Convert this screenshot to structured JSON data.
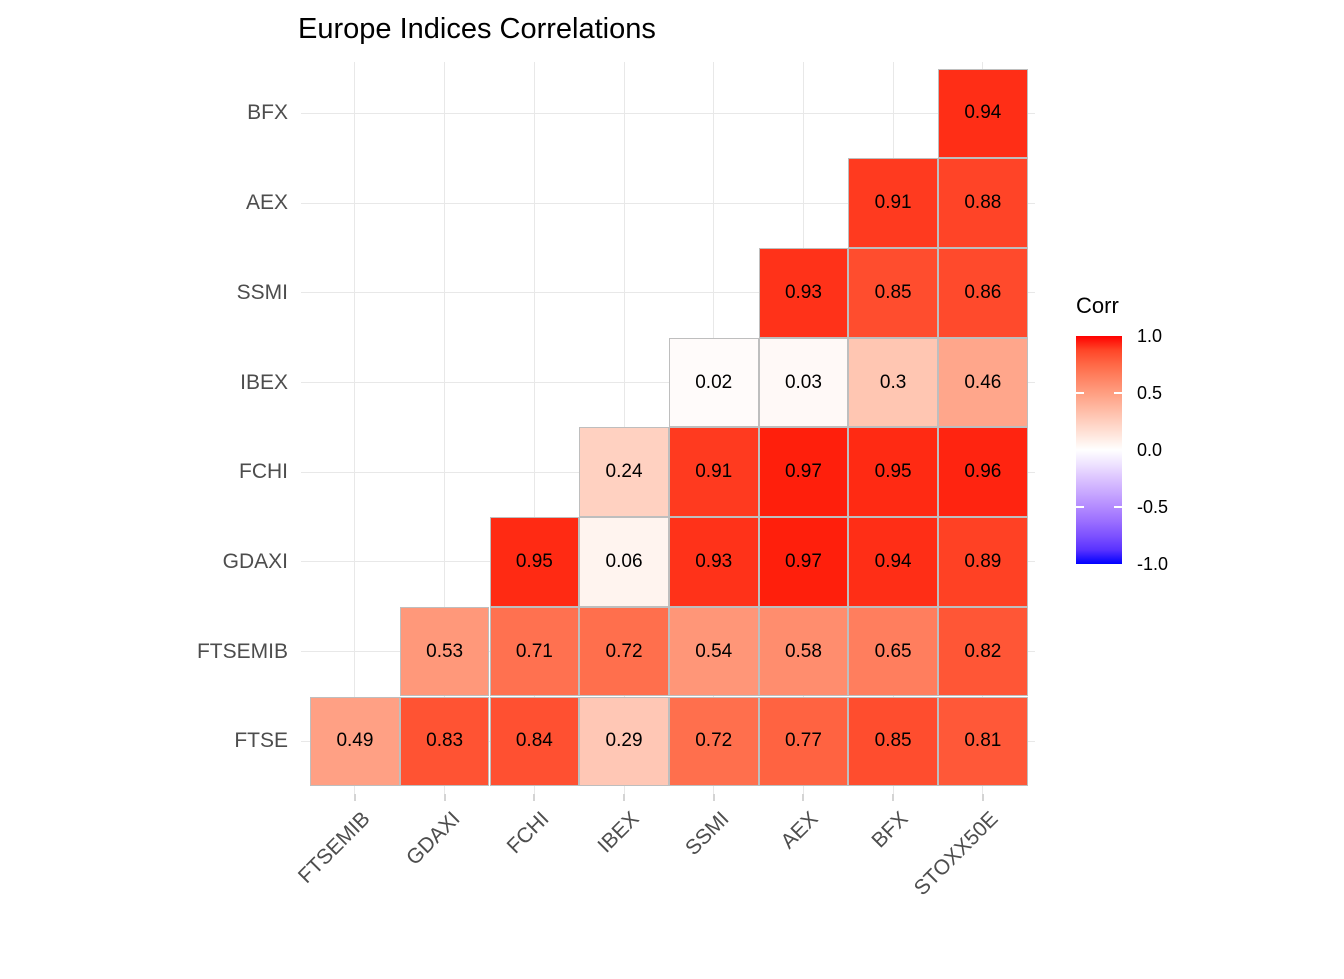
{
  "title": "Europe Indices Correlations",
  "legend": {
    "title": "Corr",
    "ticks": [
      {
        "label": "1.0",
        "value": 1.0
      },
      {
        "label": "0.5",
        "value": 0.5
      },
      {
        "label": "0.0",
        "value": 0.0
      },
      {
        "label": "-0.5",
        "value": -0.5
      },
      {
        "label": "-1.0",
        "value": -1.0
      }
    ]
  },
  "colors": {
    "high": "#FF0000",
    "mid": "#FFFFFF",
    "low": "#0000FF",
    "grid": "#E8E8E8",
    "cell_border": "#BEBEBE",
    "axis_text": "#4D4D4D",
    "axis_tick": "#D4D4D4",
    "title_text": "#000000",
    "value_text": "#000000"
  },
  "chart_data": {
    "type": "heatmap",
    "title": "Europe Indices Correlations",
    "x_categories": [
      "FTSEMIB",
      "GDAXI",
      "FCHI",
      "IBEX",
      "SSMI",
      "AEX",
      "BFX",
      "STOXX50E"
    ],
    "y_categories_top_to_bottom": [
      "BFX",
      "AEX",
      "SSMI",
      "IBEX",
      "FCHI",
      "GDAXI",
      "FTSEMIB",
      "FTSE"
    ],
    "values": [
      [
        null,
        null,
        null,
        null,
        null,
        null,
        null,
        0.94
      ],
      [
        null,
        null,
        null,
        null,
        null,
        null,
        0.91,
        0.88
      ],
      [
        null,
        null,
        null,
        null,
        null,
        0.93,
        0.85,
        0.86
      ],
      [
        null,
        null,
        null,
        null,
        0.02,
        0.03,
        0.3,
        0.46
      ],
      [
        null,
        null,
        null,
        0.24,
        0.91,
        0.97,
        0.95,
        0.96
      ],
      [
        null,
        null,
        0.95,
        0.06,
        0.93,
        0.97,
        0.94,
        0.89
      ],
      [
        null,
        0.53,
        0.71,
        0.72,
        0.54,
        0.58,
        0.65,
        0.82
      ],
      [
        0.49,
        0.83,
        0.84,
        0.29,
        0.72,
        0.77,
        0.85,
        0.81
      ]
    ],
    "color_scale": {
      "name": "Corr",
      "domain": [
        -1,
        1
      ],
      "midpoint": 0,
      "low": "#0000FF",
      "mid": "#FFFFFF",
      "high": "#FF0000"
    },
    "legend_position": "right",
    "grid": true,
    "shape": "lower-left-empty-triangle",
    "value_labels_shown": true
  }
}
